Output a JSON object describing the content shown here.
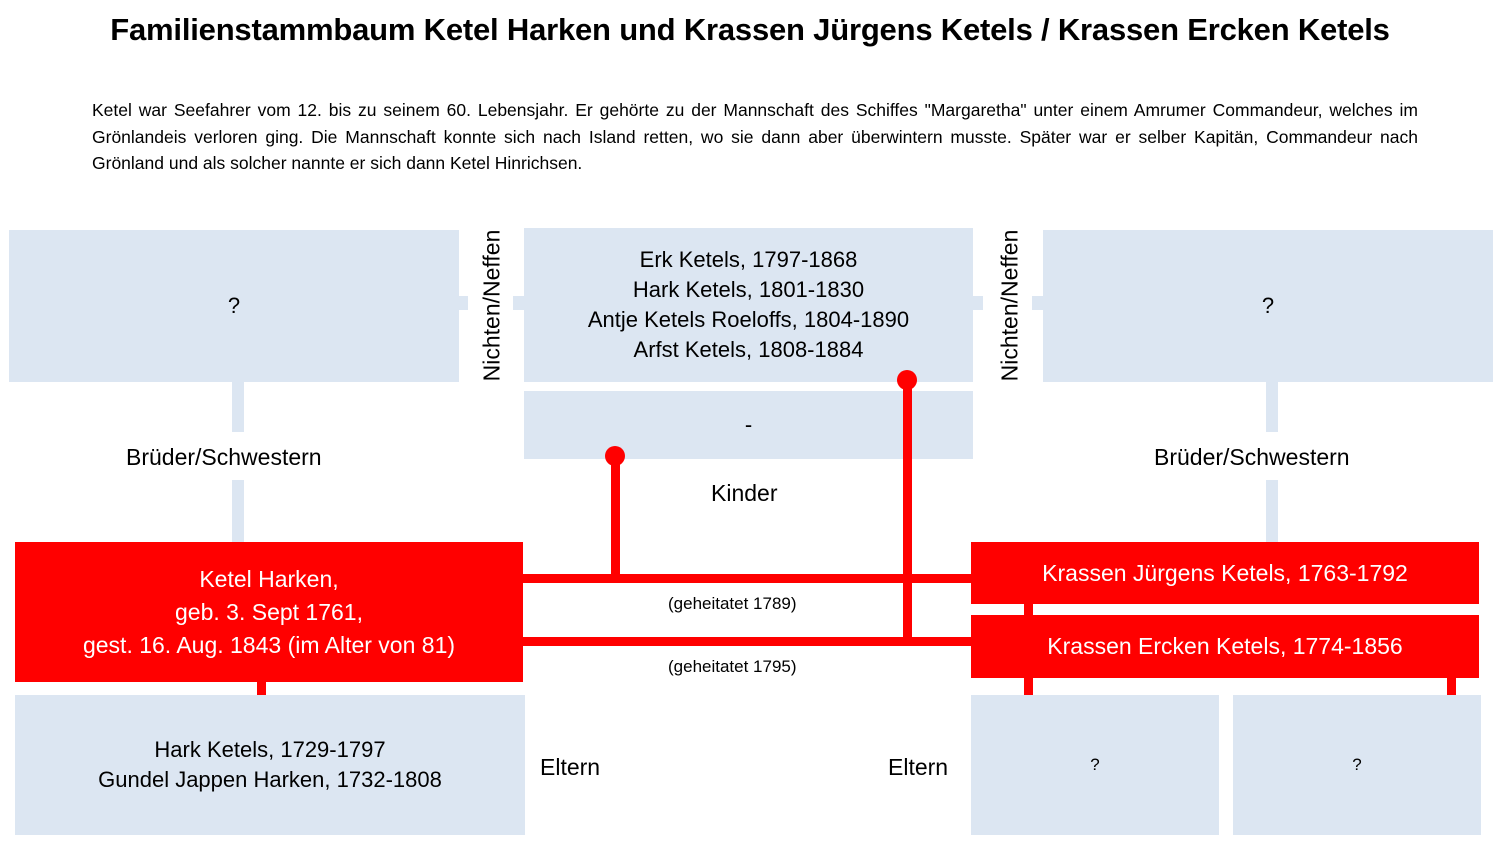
{
  "title": "Familienstammbaum Ketel Harken und Krassen Jürgens Ketels / Krassen Ercken Ketels",
  "intro": "Ketel war Seefahrer vom 12. bis zu seinem 60. Lebensjahr. Er gehörte zu der Mannschaft des Schiffes \"Margaretha\" unter einem Amrumer Commandeur, welches im Grönlandeis verloren ging. Die Mannschaft konnte sich nach Island retten, wo sie dann aber überwintern musste. Später war er selber Kapitän, Commandeur nach Grönland und als solcher nannte er sich dann Ketel Hinrichsen.",
  "colors": {
    "accent": "#ff0000",
    "box": "#dce6f2"
  },
  "left_siblings": "?",
  "right_siblings": "?",
  "nieces_label_left": "Nichten/Neffen",
  "nieces_label_right": "Nichten/Neffen",
  "nieces": [
    "Erk Ketels, 1797-1868",
    "Hark Ketels, 1801-1830",
    "Antje Ketels Roeloffs, 1804-1890",
    "Arfst Ketels, 1808-1884"
  ],
  "children_second": "-",
  "children_label": "Kinder",
  "siblings_label_left": "Brüder/Schwestern",
  "siblings_label_right": "Brüder/Schwestern",
  "ketel": [
    "Ketel Harken,",
    "geb. 3. Sept 1761,",
    "gest. 16. Aug. 1843 (im Alter von 81)"
  ],
  "wife1": "Krassen Jürgens Ketels, 1763-1792",
  "wife2": "Krassen Ercken Ketels, 1774-1856",
  "marriage1": "(geheitatet 1789)",
  "marriage2": "(geheitatet 1795)",
  "parents_ketel": [
    "Hark Ketels, 1729-1797",
    "Gundel Jappen Harken, 1732-1808"
  ],
  "parents_label_left": "Eltern",
  "parents_label_right": "Eltern",
  "parents_wife1": "?",
  "parents_wife2": "?"
}
